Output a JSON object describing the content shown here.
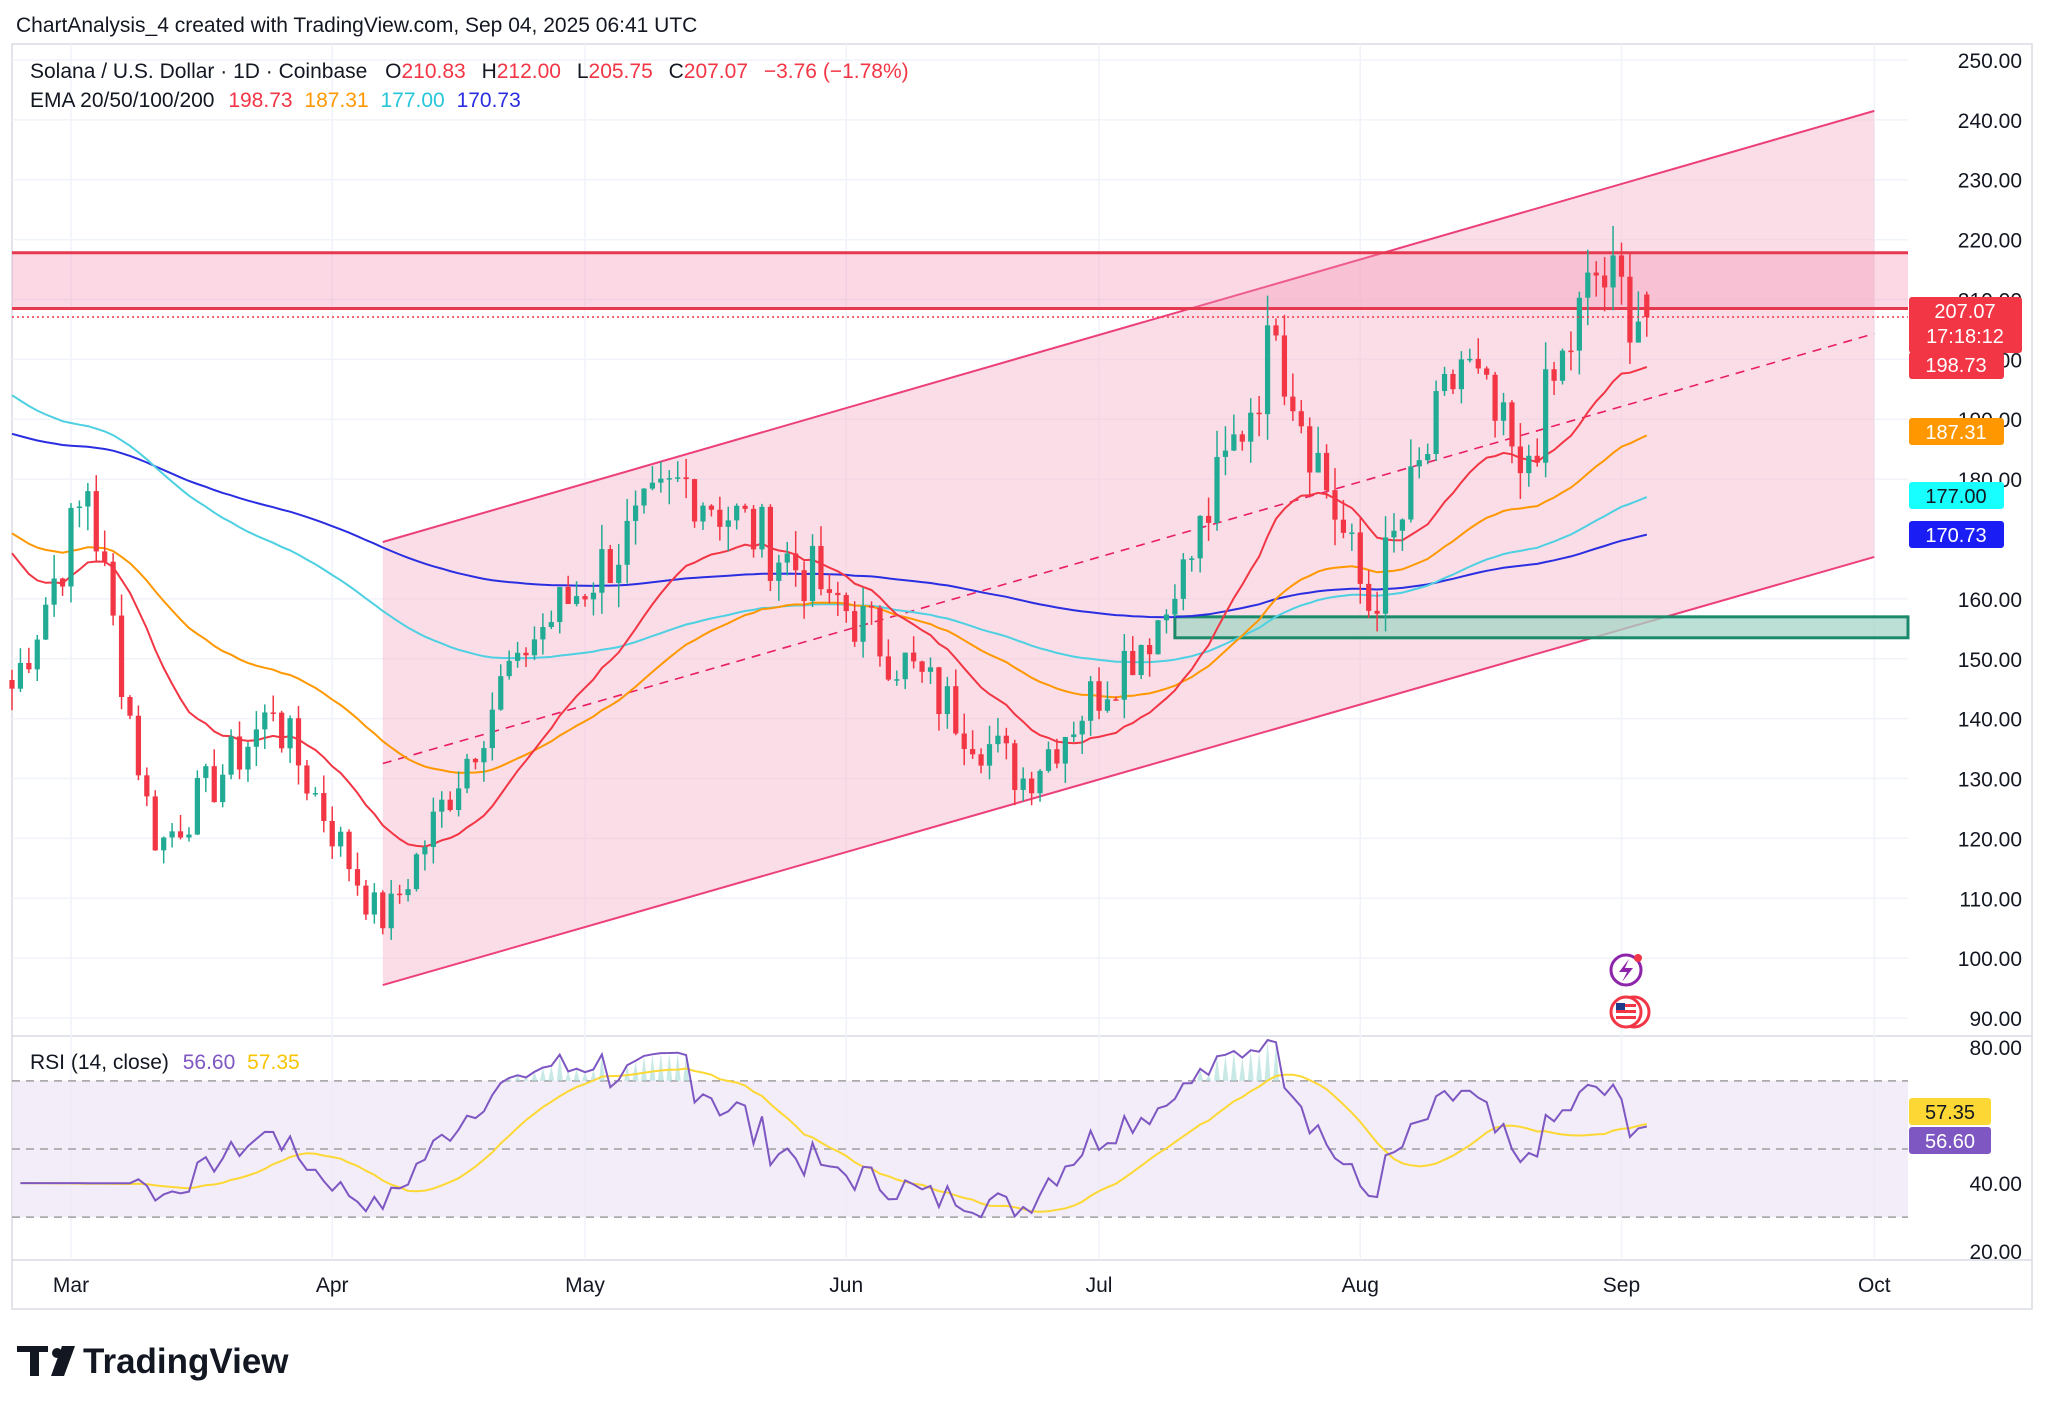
{
  "header": {
    "credit": "ChartAnalysis_4 created with TradingView.com, Sep 04, 2025 06:41 UTC",
    "symbol": "Solana / U.S. Dollar · 1D · Coinbase",
    "o_label": "O",
    "o_value": "210.83",
    "h_label": "H",
    "h_value": "212.00",
    "l_label": "L",
    "l_value": "205.75",
    "c_label": "C",
    "c_value": "207.07",
    "change": "−3.76 (−1.78%)",
    "ema_label": "EMA 20/50/100/200",
    "ema20": "198.73",
    "ema50": "187.31",
    "ema100": "177.00",
    "ema200": "170.73",
    "rsi_label": "RSI (14, close)",
    "rsi_value": "56.60",
    "rsi_ma": "57.35"
  },
  "badges": {
    "price": "207.07",
    "countdown": "17:18:12",
    "ema20": "198.73",
    "ema50": "187.31",
    "ema100": "177.00",
    "ema200": "170.73",
    "rsi_ma": "57.35",
    "rsi": "56.60"
  },
  "footer": {
    "brand": "TradingView"
  },
  "colors": {
    "up": "#22ab94",
    "down": "#f23645",
    "ema20": "#f23645",
    "ema50": "#ff9800",
    "ema100": "#4dd0e1",
    "ema200": "#2a2ee0",
    "channel": "#f06292",
    "rsi": "#7e57c2",
    "rsi_ma": "#fdd835"
  },
  "chart_data": [
    {
      "type": "candlestick",
      "title": "Solana / U.S. Dollar · 1D · Coinbase",
      "y_ticks": [
        "250.00",
        "240.00",
        "230.00",
        "220.00",
        "210.00",
        "200.00",
        "190.00",
        "180.00",
        "160.00",
        "150.00",
        "140.00",
        "130.00",
        "120.00",
        "110.00",
        "100.00",
        "90.00"
      ],
      "x_ticks": [
        {
          "label": "Mar",
          "date": "2025-03-01"
        },
        {
          "label": "Apr",
          "date": "2025-04-01"
        },
        {
          "label": "May",
          "date": "2025-05-01"
        },
        {
          "label": "Jun",
          "date": "2025-06-01"
        },
        {
          "label": "Jul",
          "date": "2025-07-01"
        },
        {
          "label": "Aug",
          "date": "2025-08-01"
        },
        {
          "label": "Sep",
          "date": "2025-09-01"
        },
        {
          "label": "Oct",
          "date": "2025-10-01"
        }
      ],
      "ylim": [
        88,
        252
      ],
      "xlim": [
        "2025-02-22",
        "2025-10-05"
      ],
      "last_close": 207.07,
      "candles_key_points": [
        {
          "date": "2025-02-22",
          "close": 145
        },
        {
          "date": "2025-03-03",
          "close": 178
        },
        {
          "date": "2025-03-11",
          "close": 118
        },
        {
          "date": "2025-03-25",
          "close": 141
        },
        {
          "date": "2025-04-07",
          "close": 105
        },
        {
          "date": "2025-04-23",
          "close": 151
        },
        {
          "date": "2025-05-13",
          "close": 180
        },
        {
          "date": "2025-05-30",
          "close": 161
        },
        {
          "date": "2025-06-22",
          "close": 130
        },
        {
          "date": "2025-07-10",
          "close": 160
        },
        {
          "date": "2025-07-22",
          "close": 204
        },
        {
          "date": "2025-08-02",
          "close": 158
        },
        {
          "date": "2025-08-13",
          "close": 200
        },
        {
          "date": "2025-08-20",
          "close": 181
        },
        {
          "date": "2025-08-29",
          "close": 214
        },
        {
          "date": "2025-09-04",
          "close": 207.07
        }
      ],
      "ema": {
        "ema20_last": 198.73,
        "ema50_last": 187.31,
        "ema100_last": 177.0,
        "ema200_last": 170.73
      },
      "channel": {
        "upper_start": {
          "date": "2025-04-07",
          "price": 169.5
        },
        "upper_end": {
          "date": "2025-10-01",
          "price": 241.5
        },
        "mid_start": {
          "date": "2025-04-07",
          "price": 132.5
        },
        "mid_end": {
          "date": "2025-10-01",
          "price": 204.3
        },
        "lower_start": {
          "date": "2025-04-07",
          "price": 95.5
        },
        "lower_end": {
          "date": "2025-10-01",
          "price": 167
        }
      },
      "resistance_zone": [
        208.5,
        217.8
      ],
      "support_zone": [
        153.5,
        157
      ]
    },
    {
      "type": "line",
      "title": "RSI (14, close)",
      "y_ticks": [
        "80.00",
        "40.00",
        "20.00"
      ],
      "ylim": [
        18,
        82
      ],
      "bands": [
        30,
        50,
        70
      ],
      "series": [
        {
          "name": "RSI",
          "last": 56.6
        },
        {
          "name": "RSI MA",
          "last": 57.35
        }
      ]
    }
  ]
}
